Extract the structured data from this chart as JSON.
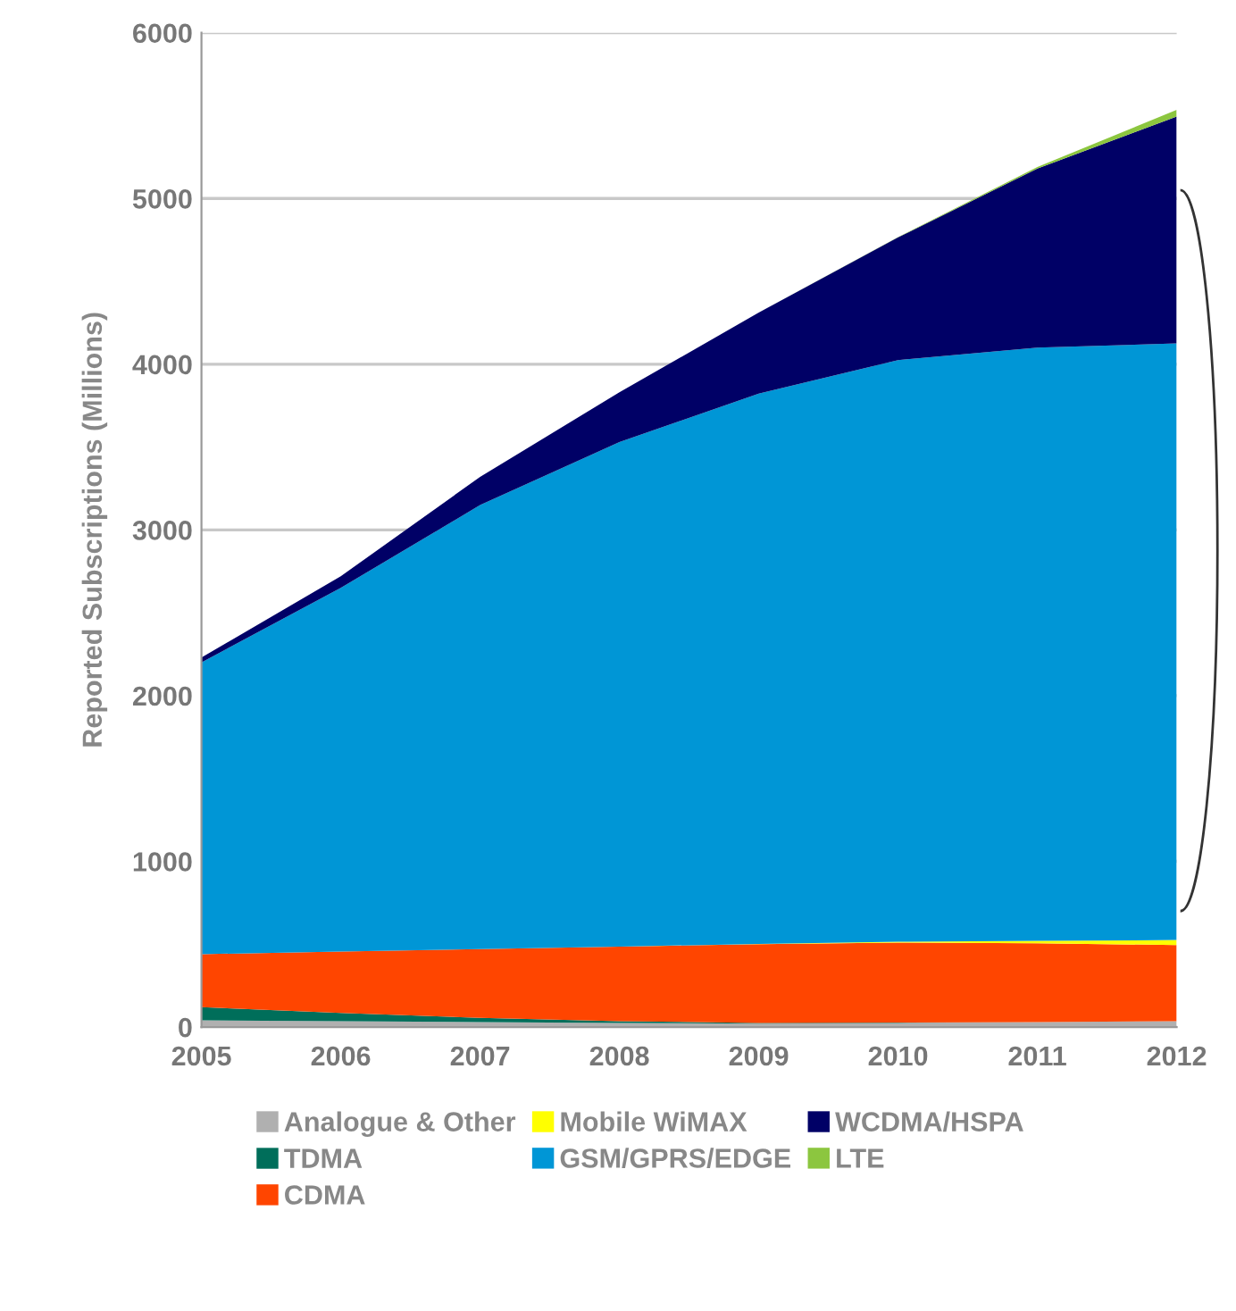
{
  "chart_data": {
    "type": "area",
    "stacked": true,
    "ylabel": "Reported Subscriptions (Millions)",
    "categories": [
      "2005",
      "2006",
      "2007",
      "2008",
      "2009",
      "2010",
      "2011",
      "2012"
    ],
    "series": [
      {
        "name": "Analogue & Other",
        "color": "#b0b0b0",
        "values": [
          40,
          35,
          30,
          25,
          20,
          25,
          30,
          35
        ]
      },
      {
        "name": "TDMA",
        "color": "#006e5a",
        "values": [
          80,
          50,
          25,
          10,
          5,
          2,
          0,
          0
        ]
      },
      {
        "name": "CDMA",
        "color": "#ff4500",
        "values": [
          320,
          370,
          415,
          450,
          475,
          483,
          475,
          460
        ]
      },
      {
        "name": "Mobile WiMAX",
        "color": "#ffff00",
        "values": [
          0,
          0,
          0,
          0,
          2,
          5,
          15,
          30
        ]
      },
      {
        "name": "GSM/GPRS/EDGE",
        "color": "#0096d6",
        "values": [
          1760,
          2195,
          2680,
          3045,
          3320,
          3510,
          3580,
          3600
        ]
      },
      {
        "name": "WCDMA/HSPA",
        "color": "#000066",
        "values": [
          30,
          70,
          170,
          300,
          490,
          740,
          1080,
          1370
        ]
      },
      {
        "name": "LTE",
        "color": "#8cc63f",
        "values": [
          0,
          0,
          0,
          0,
          0,
          2,
          10,
          40
        ]
      }
    ],
    "ylim": [
      0,
      6000
    ],
    "yticks": [
      0,
      1000,
      2000,
      3000,
      4000,
      5000,
      6000
    ],
    "grid": "y",
    "legend": "bottom"
  }
}
